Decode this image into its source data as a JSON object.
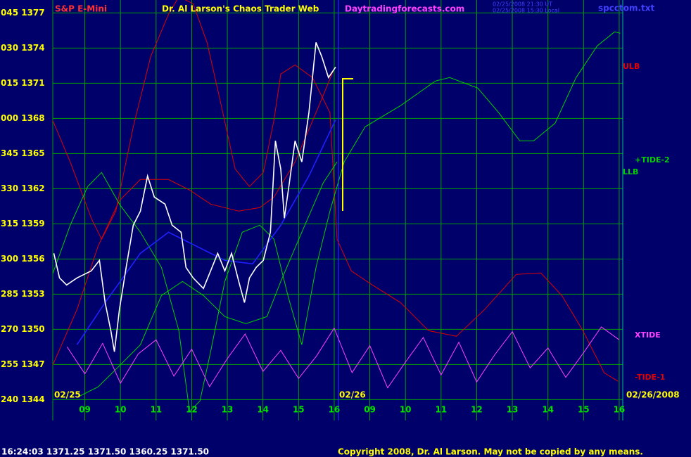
{
  "chart_data": {
    "type": "line",
    "instrument": "S&P E-Mini",
    "title": "Dr. Al Larson's Chaos Trader Web",
    "website": "Daytradingforecasts.com",
    "timestamps": [
      "02/25/2008 21:30 UT",
      "02/25/2008 15:30 Local"
    ],
    "file": "spcctom.txt",
    "date_labels": [
      "02/25",
      "02/26",
      "02/26/2008"
    ],
    "status": "16:24:03 1371.25 1371.50 1360.25 1371.50",
    "copyright": "Copyright 2008, Dr. Al Larson. May not be copied by any means.",
    "xlim": [
      0.1,
      16.1
    ],
    "ylim": [
      1342.4,
      1378.1
    ],
    "grid": true,
    "xticks": [
      {
        "value": 1,
        "label": "09"
      },
      {
        "value": 2,
        "label": "10"
      },
      {
        "value": 3,
        "label": "11"
      },
      {
        "value": 4,
        "label": "12"
      },
      {
        "value": 5,
        "label": "13"
      },
      {
        "value": 6,
        "label": "14"
      },
      {
        "value": 7,
        "label": "15"
      },
      {
        "value": 8,
        "label": "16"
      },
      {
        "value": 9,
        "label": "09"
      },
      {
        "value": 10,
        "label": "10"
      },
      {
        "value": 11,
        "label": "11"
      },
      {
        "value": 12,
        "label": "12"
      },
      {
        "value": 13,
        "label": "13"
      },
      {
        "value": 14,
        "label": "14"
      },
      {
        "value": 15,
        "label": "15"
      },
      {
        "value": 16,
        "label": "16"
      }
    ],
    "yticks": [
      {
        "value": 1377,
        "label": "045 1377"
      },
      {
        "value": 1374,
        "label": "030 1374"
      },
      {
        "value": 1371,
        "label": "015 1371"
      },
      {
        "value": 1368,
        "label": "000 1368"
      },
      {
        "value": 1365,
        "label": "345 1365"
      },
      {
        "value": 1362,
        "label": "330 1362"
      },
      {
        "value": 1359,
        "label": "315 1359"
      },
      {
        "value": 1356,
        "label": "300 1356"
      },
      {
        "value": 1353,
        "label": "285 1353"
      },
      {
        "value": 1350,
        "label": "270 1350"
      },
      {
        "value": 1347,
        "label": "255 1347"
      },
      {
        "value": 1344,
        "label": "240 1344"
      }
    ],
    "series": [
      {
        "name": "ULB",
        "color": "#e00000",
        "x": [
          0.09,
          0.59,
          1.18,
          1.47,
          1.87,
          2.36,
          2.85,
          3.35,
          3.64,
          4.04,
          4.43,
          4.83,
          5.22,
          5.62,
          6.01,
          6.31,
          6.5,
          6.9,
          7.39,
          7.88,
          8.08,
          8.48,
          9.07,
          9.86,
          10.65,
          11.43,
          12.22,
          13.11,
          13.8,
          14.39,
          14.98,
          15.58,
          15.97
        ],
        "values": [
          1367.88,
          1364.28,
          1359.48,
          1357.68,
          1360.08,
          1367.28,
          1373.28,
          1376.88,
          1378.38,
          1377.78,
          1374.48,
          1369.08,
          1363.68,
          1362.18,
          1363.38,
          1367.88,
          1371.78,
          1372.56,
          1371.48,
          1368.48,
          1357.68,
          1354.98,
          1353.78,
          1352.28,
          1349.88,
          1349.4,
          1351.68,
          1354.68,
          1354.8,
          1352.88,
          1349.88,
          1346.28,
          1345.56
        ]
      },
      {
        "name": "-TIDE-1",
        "color": "#e00000",
        "x": [
          0.09,
          0.78,
          1.37,
          1.97,
          2.56,
          3.35,
          3.94,
          4.53,
          5.32,
          5.91,
          6.31,
          6.9,
          7.49,
          7.98
        ],
        "values": [
          1346.88,
          1351.68,
          1357.08,
          1360.98,
          1362.78,
          1362.78,
          1361.88,
          1360.68,
          1360.08,
          1360.38,
          1361.28,
          1364.28,
          1368.48,
          1372.08
        ]
      },
      {
        "name": "+TIDE-2",
        "color": "#00d000",
        "x": [
          0.09,
          0.59,
          1.08,
          1.47,
          1.97,
          2.56,
          3.15,
          3.64,
          3.94,
          4.23,
          4.53,
          4.93,
          5.42,
          5.91,
          6.31,
          6.7,
          7.09,
          7.49,
          7.88,
          8.28,
          8.87,
          9.86,
          10.84,
          11.24,
          12.03,
          12.62,
          13.21,
          13.6,
          14.2,
          14.79,
          15.38,
          15.87,
          16.03
        ],
        "values": [
          1354.68,
          1358.88,
          1362.18,
          1363.38,
          1360.68,
          1358.28,
          1355.28,
          1349.88,
          1342.98,
          1343.88,
          1348.08,
          1354.08,
          1358.28,
          1358.88,
          1357.68,
          1352.88,
          1348.68,
          1355.28,
          1360.08,
          1364.28,
          1367.28,
          1369.08,
          1371.18,
          1371.48,
          1370.58,
          1368.48,
          1366.08,
          1366.08,
          1367.58,
          1371.48,
          1374.18,
          1375.38,
          1375.26
        ]
      },
      {
        "name": "LLB",
        "color": "#00d000",
        "x": [
          0.78,
          1.37,
          1.97,
          2.56,
          3.15,
          3.74,
          4.33,
          4.93,
          5.52,
          6.11,
          6.5,
          7.09,
          7.69,
          8.08
        ],
        "values": [
          1344.18,
          1345.08,
          1346.88,
          1348.68,
          1352.88,
          1354.08,
          1352.88,
          1351.08,
          1350.48,
          1351.08,
          1354.08,
          1358.28,
          1362.48,
          1364.28
        ]
      },
      {
        "name": "XTIDE",
        "color": "#ff40ff",
        "x": [
          0.5,
          1,
          1.5,
          2,
          2.5,
          3,
          3.5,
          4,
          4.5,
          5,
          5.5,
          6,
          6.5,
          7,
          7.5,
          8,
          8.5,
          9,
          9.5,
          10,
          10.5,
          11,
          11.5,
          12,
          12.5,
          13,
          13.5,
          14,
          14.5,
          15,
          15.5,
          16
        ],
        "values": [
          1348.5,
          1346.2,
          1348.8,
          1345.4,
          1347.9,
          1349.1,
          1346.0,
          1348.3,
          1345.1,
          1347.5,
          1349.6,
          1346.4,
          1348.2,
          1345.8,
          1347.7,
          1350.1,
          1346.3,
          1348.6,
          1345.0,
          1347.2,
          1349.3,
          1346.1,
          1348.9,
          1345.5,
          1347.8,
          1349.8,
          1346.7,
          1348.4,
          1345.9,
          1348.0,
          1350.2,
          1349.1
        ]
      },
      {
        "color": "#2020ff",
        "x": [
          0.78,
          1.57,
          2.56,
          3.35,
          4.14,
          4.93,
          5.71,
          6.5,
          7.29,
          8.04
        ],
        "values": [
          1348.68,
          1352.28,
          1356.48,
          1358.28,
          1357.08,
          1355.88,
          1355.58,
          1358.88,
          1363.08,
          1367.88
        ]
      },
      {
        "color": "#ffffff",
        "x": [
          0.13,
          0.29,
          0.49,
          0.78,
          1.18,
          1.41,
          1.57,
          1.73,
          1.83,
          1.97,
          2.16,
          2.36,
          2.56,
          2.76,
          2.95,
          3.25,
          3.45,
          3.7,
          3.84,
          4.04,
          4.33,
          4.53,
          4.73,
          4.93,
          5.12,
          5.32,
          5.48,
          5.62,
          5.81,
          6.01,
          6.21,
          6.35,
          6.5,
          6.6,
          6.74,
          6.9,
          7.09,
          7.29,
          7.49,
          7.65,
          7.84,
          8.04
        ],
        "values": [
          1356.48,
          1354.38,
          1353.78,
          1354.38,
          1354.98,
          1355.88,
          1352.28,
          1349.88,
          1348.08,
          1351.68,
          1355.28,
          1358.88,
          1360.08,
          1363.08,
          1361.28,
          1360.68,
          1358.88,
          1358.28,
          1355.28,
          1354.38,
          1353.48,
          1354.98,
          1356.48,
          1354.98,
          1356.48,
          1354.08,
          1352.28,
          1354.38,
          1355.28,
          1355.88,
          1358.28,
          1366.08,
          1363.68,
          1359.48,
          1362.48,
          1366.08,
          1364.28,
          1368.48,
          1374.48,
          1373.28,
          1371.48,
          1372.38
        ]
      }
    ]
  }
}
